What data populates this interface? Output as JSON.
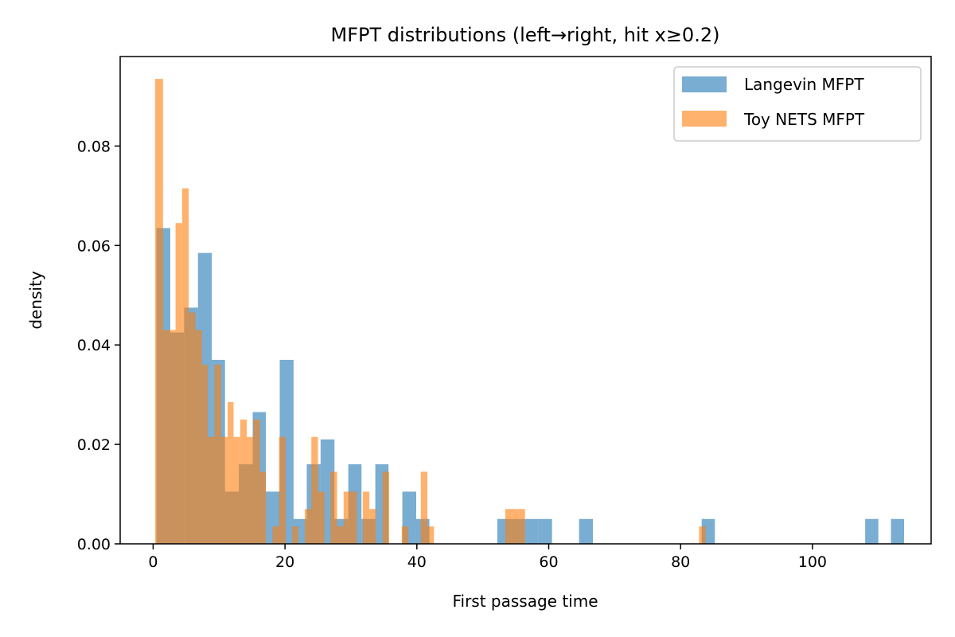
{
  "chart_data": {
    "type": "bar",
    "title": "MFPT distributions (left→right, hit x≥0.2)",
    "xlabel": "First passage time",
    "ylabel": "density",
    "xlim": [
      -5,
      118
    ],
    "ylim": [
      0,
      0.098
    ],
    "xticks": [
      0,
      20,
      40,
      60,
      80,
      100
    ],
    "yticks": [
      0.0,
      0.02,
      0.04,
      0.06,
      0.08
    ],
    "xtick_labels": [
      "0",
      "20",
      "40",
      "60",
      "80",
      "100"
    ],
    "ytick_labels": [
      "0.00",
      "0.02",
      "0.04",
      "0.06",
      "0.08"
    ],
    "grid": false,
    "legend_position": "top-right",
    "series": [
      {
        "name": "Langevin MFPT",
        "color": "#1f77b4",
        "bin_edges": [
          0.5,
          2.6,
          4.7,
          6.8,
          8.9,
          10.9,
          13.0,
          15.1,
          17.1,
          19.2,
          21.3,
          23.3,
          25.4,
          27.5,
          29.6,
          31.6,
          33.7,
          35.7,
          37.8,
          39.9,
          41.9,
          52.2,
          54.3,
          56.4,
          58.4,
          60.5,
          64.6,
          66.7,
          83.2,
          85.2,
          108.0,
          110.0,
          111.9,
          113.9
        ],
        "values": [
          0.0635,
          0.0425,
          0.0475,
          0.0585,
          0.037,
          0.0105,
          0.016,
          0.0265,
          0.0105,
          0.037,
          0.005,
          0.016,
          0.021,
          0.005,
          0.016,
          0.005,
          0.016,
          0.0,
          0.0105,
          0.005,
          0.0,
          0.005,
          0.005,
          0.005,
          0.005,
          0.0,
          0.005,
          0.0,
          0.005,
          0.0,
          0.005,
          0.0,
          0.005
        ]
      },
      {
        "name": "Toy NETS MFPT",
        "color": "#ff7f0e",
        "bin_edges": [
          0.3,
          1.5,
          2.5,
          3.4,
          4.4,
          5.4,
          6.4,
          7.4,
          8.3,
          9.3,
          10.3,
          11.3,
          12.2,
          13.2,
          14.2,
          15.2,
          16.2,
          17.1,
          18.1,
          19.1,
          20.1,
          21.1,
          22.0,
          23.0,
          24.0,
          25.0,
          26.0,
          26.9,
          27.9,
          28.9,
          29.9,
          30.9,
          31.8,
          32.8,
          33.8,
          34.8,
          35.8,
          36.7,
          37.7,
          38.7,
          39.7,
          40.6,
          41.6,
          42.6,
          53.4,
          54.4,
          55.4,
          56.4,
          57.3,
          82.8,
          83.8
        ],
        "values": [
          0.0935,
          0.043,
          0.043,
          0.0645,
          0.0715,
          0.0465,
          0.043,
          0.036,
          0.0215,
          0.036,
          0.0215,
          0.0285,
          0.0215,
          0.025,
          0.0215,
          0.025,
          0.0145,
          0.0,
          0.0035,
          0.0215,
          0.0,
          0.0035,
          0.0,
          0.007,
          0.0215,
          0.0105,
          0.0,
          0.0145,
          0.0035,
          0.0105,
          0.0105,
          0.0,
          0.0105,
          0.007,
          0.0,
          0.0145,
          0.0,
          0.0,
          0.0035,
          0.0,
          0.0,
          0.0145,
          0.0035,
          0.0,
          0.007,
          0.007,
          0.007,
          0.0,
          0.0,
          0.0035
        ]
      }
    ]
  }
}
